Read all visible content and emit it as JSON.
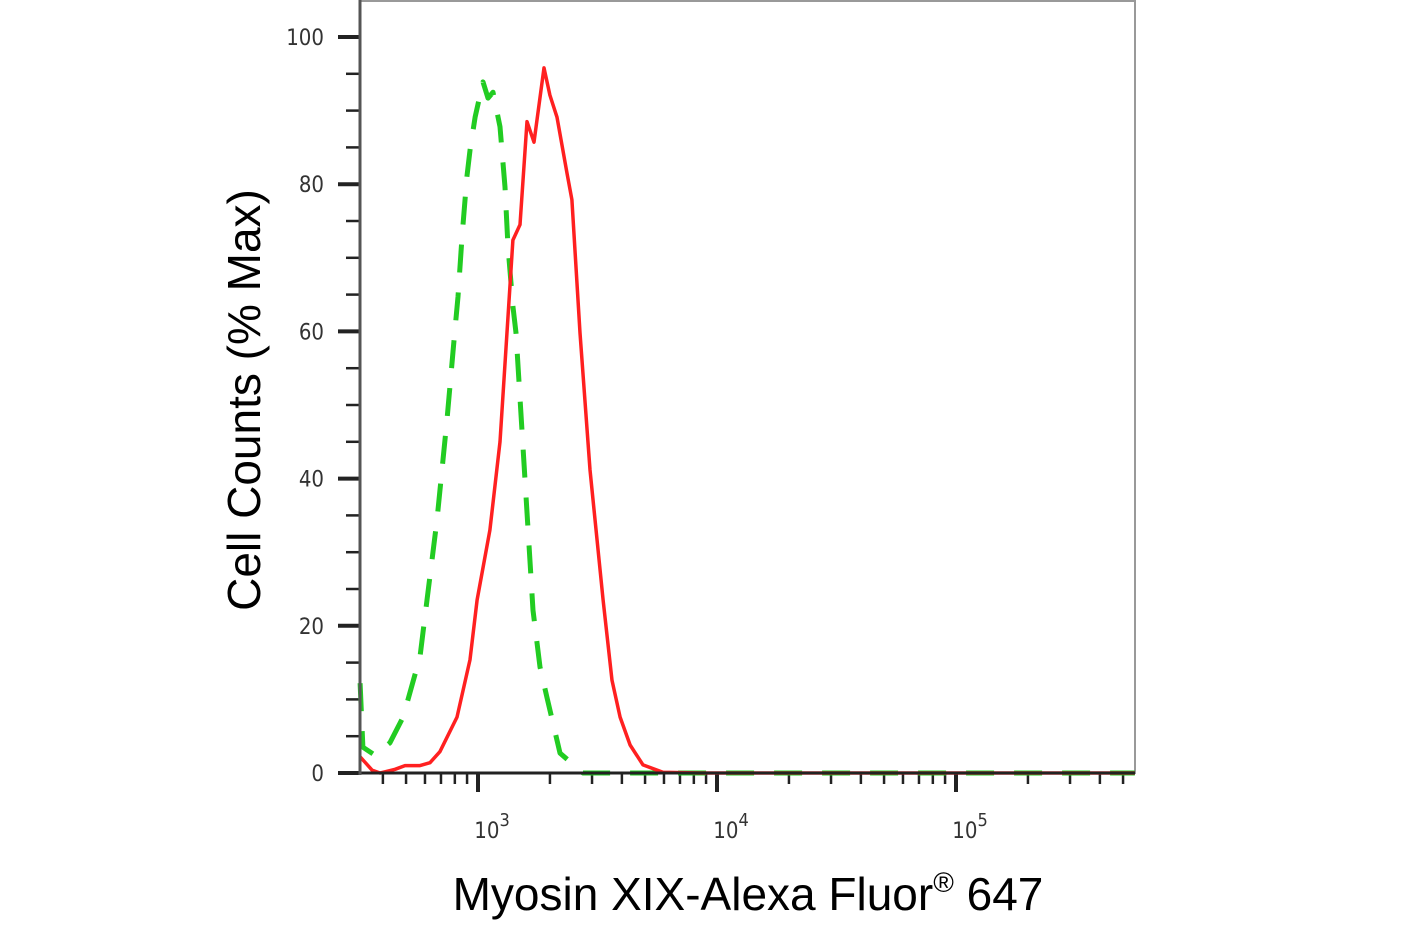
{
  "chart_data": {
    "type": "line",
    "title": "",
    "xlabel": "Myosin XIX-Alexa Fluor",
    "xlabel_superscript": "®",
    "xlabel_suffix": " 647",
    "ylabel": "Cell Counts (% Max)",
    "xscale": "log",
    "xlim": [
      320,
      560000
    ],
    "ylim": [
      0,
      105
    ],
    "yticks": [
      0,
      20,
      40,
      60,
      80,
      100
    ],
    "ytick_labels": [
      "0",
      "20",
      "40",
      "60",
      "80",
      "100"
    ],
    "xticks": [
      1000,
      10000,
      100000
    ],
    "xtick_labels": [
      {
        "base": "10",
        "exp": "3"
      },
      {
        "base": "10",
        "exp": "4"
      },
      {
        "base": "10",
        "exp": "5"
      }
    ],
    "grid": false,
    "legend": "none",
    "series": [
      {
        "color": "#ff2020",
        "style": "solid",
        "x": [
          321,
          336,
          360,
          389,
          450,
          495,
          572,
          630,
          693,
          817,
          926,
          991,
          1122,
          1236,
          1400,
          1499,
          1603,
          1715,
          1888,
          2000,
          2141,
          2357,
          2471,
          2672,
          2943,
          3337,
          3637,
          3930,
          4328,
          4900,
          5940,
          8490,
          20000,
          100000,
          560000
        ],
        "y": [
          2.2,
          1.5,
          0.4,
          0,
          0.5,
          1.0,
          1.0,
          1.4,
          2.9,
          7.6,
          15.4,
          23.5,
          33,
          45,
          72.4,
          74.5,
          88.5,
          85.7,
          95.8,
          92.1,
          89.1,
          81.5,
          77.9,
          59.8,
          41.2,
          23.5,
          12.6,
          7.6,
          3.8,
          1.1,
          0.1,
          0,
          0,
          0,
          0
        ]
      },
      {
        "color": "#22cc22",
        "style": "dashed",
        "x": [
          321,
          330,
          371,
          428,
          486,
          572,
          612,
          674,
          742,
          801,
          825,
          857,
          899,
          926,
          972,
          1049,
          1101,
          1155,
          1236,
          1297,
          1335,
          1401,
          1442,
          1699,
          1818,
          1943,
          2203,
          2751,
          10000,
          100000,
          560000
        ],
        "y": [
          12.2,
          3.5,
          2.4,
          4.1,
          7.6,
          15.8,
          23.5,
          34.4,
          48,
          60.3,
          64.7,
          72.8,
          81,
          84.6,
          89.1,
          93.9,
          91.7,
          92.5,
          87.8,
          79.6,
          71.5,
          63.3,
          59.8,
          22.1,
          14.4,
          10.3,
          2.7,
          0,
          0,
          0,
          0
        ]
      }
    ]
  }
}
